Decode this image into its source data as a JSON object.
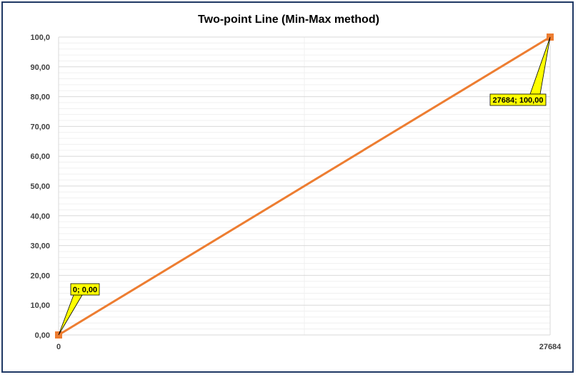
{
  "chart_data": {
    "type": "line",
    "title": "Two-point Line (Min-Max method)",
    "xlabel": "",
    "ylabel": "",
    "x": [
      0,
      27684
    ],
    "series": [
      {
        "values": [
          0,
          100
        ],
        "color": "#ed7d31"
      }
    ],
    "xlim": [
      0,
      27684
    ],
    "ylim": [
      0,
      100
    ],
    "x_ticks": [
      "0",
      "27684"
    ],
    "y_ticks": [
      "0,00",
      "10,00",
      "20,00",
      "30,00",
      "40,00",
      "50,00",
      "60,00",
      "70,00",
      "80,00",
      "90,00",
      "100,0"
    ],
    "y_tick_values": [
      0,
      10,
      20,
      30,
      40,
      50,
      60,
      70,
      80,
      90,
      100
    ],
    "annotations": [
      {
        "x": 0,
        "y": 0,
        "text": "0; 0,00"
      },
      {
        "x": 27684,
        "y": 100,
        "text": "27684; 100,00"
      }
    ],
    "grid": true,
    "legend": "none",
    "colors": {
      "line": "#ed7d31",
      "marker": "#ed7d31",
      "callout_fill": "#ffff00",
      "frame": "#1f3864",
      "grid": "#d9d9d9"
    }
  }
}
